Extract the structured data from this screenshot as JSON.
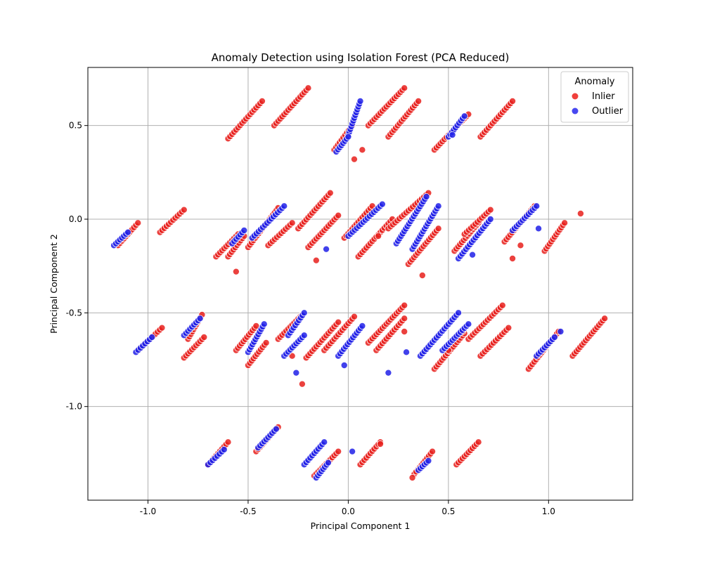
{
  "chart_data": {
    "type": "scatter",
    "title": "Anomaly Detection using Isolation Forest (PCA Reduced)",
    "xlabel": "Principal Component 1",
    "ylabel": "Principal Component 2",
    "xlim": [
      -1.3,
      1.42
    ],
    "ylim": [
      -1.5,
      0.81
    ],
    "xticks": [
      -1.0,
      -0.5,
      0.0,
      0.5,
      1.0
    ],
    "xtick_labels": [
      "-1.0",
      "-0.5",
      "0.0",
      "0.5",
      "1.0"
    ],
    "yticks": [
      0.5,
      0.0,
      -0.5,
      -1.0
    ],
    "ytick_labels": [
      "0.5",
      "0.0",
      "-0.5",
      "-1.0"
    ],
    "grid": true,
    "legend": {
      "title": "Anomaly",
      "position": "top-right",
      "entries": [
        {
          "label": "Inlier",
          "color": "#f0403c"
        },
        {
          "label": "Outlier",
          "color": "#4848f0"
        }
      ]
    },
    "series": [
      {
        "name": "Inlier",
        "color": "#e8201c",
        "segments": [
          {
            "x0": -1.15,
            "y0": -0.14,
            "x1": -1.05,
            "y1": -0.02
          },
          {
            "x0": -0.94,
            "y0": -0.07,
            "x1": -0.82,
            "y1": 0.05
          },
          {
            "x0": -0.6,
            "y0": 0.43,
            "x1": -0.43,
            "y1": 0.63
          },
          {
            "x0": -0.37,
            "y0": 0.5,
            "x1": -0.2,
            "y1": 0.7
          },
          {
            "x0": -0.07,
            "y0": 0.37,
            "x1": 0.02,
            "y1": 0.5
          },
          {
            "x0": 0.1,
            "y0": 0.5,
            "x1": 0.28,
            "y1": 0.7
          },
          {
            "x0": 0.2,
            "y0": 0.44,
            "x1": 0.35,
            "y1": 0.63
          },
          {
            "x0": 0.43,
            "y0": 0.37,
            "x1": 0.6,
            "y1": 0.56
          },
          {
            "x0": 0.66,
            "y0": 0.44,
            "x1": 0.82,
            "y1": 0.63
          },
          {
            "x0": -0.66,
            "y0": -0.2,
            "x1": -0.55,
            "y1": -0.08
          },
          {
            "x0": -0.6,
            "y0": -0.2,
            "x1": -0.52,
            "y1": -0.09
          },
          {
            "x0": -0.5,
            "y0": -0.15,
            "x1": -0.35,
            "y1": 0.06
          },
          {
            "x0": -0.4,
            "y0": -0.14,
            "x1": -0.28,
            "y1": -0.02
          },
          {
            "x0": -0.25,
            "y0": -0.05,
            "x1": -0.09,
            "y1": 0.14
          },
          {
            "x0": -0.2,
            "y0": -0.15,
            "x1": -0.05,
            "y1": 0.02
          },
          {
            "x0": -0.02,
            "y0": -0.1,
            "x1": 0.12,
            "y1": 0.07
          },
          {
            "x0": 0.05,
            "y0": -0.2,
            "x1": 0.22,
            "y1": 0.0
          },
          {
            "x0": 0.2,
            "y0": -0.05,
            "x1": 0.4,
            "y1": 0.14
          },
          {
            "x0": 0.3,
            "y0": -0.24,
            "x1": 0.45,
            "y1": -0.05
          },
          {
            "x0": 0.53,
            "y0": -0.17,
            "x1": 0.65,
            "y1": -0.02
          },
          {
            "x0": 0.58,
            "y0": -0.08,
            "x1": 0.71,
            "y1": 0.05
          },
          {
            "x0": 0.78,
            "y0": -0.12,
            "x1": 0.93,
            "y1": 0.07
          },
          {
            "x0": 0.98,
            "y0": -0.17,
            "x1": 1.08,
            "y1": -0.02
          },
          {
            "x0": -1.05,
            "y0": -0.7,
            "x1": -0.93,
            "y1": -0.58
          },
          {
            "x0": -0.8,
            "y0": -0.64,
            "x1": -0.73,
            "y1": -0.51
          },
          {
            "x0": -0.82,
            "y0": -0.74,
            "x1": -0.72,
            "y1": -0.63
          },
          {
            "x0": -0.56,
            "y0": -0.7,
            "x1": -0.46,
            "y1": -0.57
          },
          {
            "x0": -0.5,
            "y0": -0.78,
            "x1": -0.41,
            "y1": -0.66
          },
          {
            "x0": -0.35,
            "y0": -0.64,
            "x1": -0.23,
            "y1": -0.51
          },
          {
            "x0": -0.21,
            "y0": -0.74,
            "x1": -0.05,
            "y1": -0.55
          },
          {
            "x0": -0.12,
            "y0": -0.7,
            "x1": 0.03,
            "y1": -0.52
          },
          {
            "x0": 0.1,
            "y0": -0.66,
            "x1": 0.28,
            "y1": -0.46
          },
          {
            "x0": 0.14,
            "y0": -0.7,
            "x1": 0.28,
            "y1": -0.53
          },
          {
            "x0": 0.43,
            "y0": -0.8,
            "x1": 0.58,
            "y1": -0.61
          },
          {
            "x0": 0.6,
            "y0": -0.64,
            "x1": 0.77,
            "y1": -0.46
          },
          {
            "x0": 0.66,
            "y0": -0.73,
            "x1": 0.8,
            "y1": -0.58
          },
          {
            "x0": 1.12,
            "y0": -0.73,
            "x1": 1.28,
            "y1": -0.53
          },
          {
            "x0": 0.9,
            "y0": -0.8,
            "x1": 1.05,
            "y1": -0.6
          },
          {
            "x0": -0.7,
            "y0": -1.31,
            "x1": -0.6,
            "y1": -1.19
          },
          {
            "x0": -0.46,
            "y0": -1.24,
            "x1": -0.35,
            "y1": -1.11
          },
          {
            "x0": -0.17,
            "y0": -1.37,
            "x1": -0.05,
            "y1": -1.24
          },
          {
            "x0": 0.06,
            "y0": -1.31,
            "x1": 0.16,
            "y1": -1.19
          },
          {
            "x0": 0.54,
            "y0": -1.31,
            "x1": 0.65,
            "y1": -1.19
          },
          {
            "x0": 0.33,
            "y0": -1.36,
            "x1": 0.42,
            "y1": -1.24
          }
        ],
        "points": [
          {
            "x": 0.03,
            "y": 0.32
          },
          {
            "x": 0.07,
            "y": 0.37
          },
          {
            "x": -0.56,
            "y": -0.28
          },
          {
            "x": 0.37,
            "y": -0.3
          },
          {
            "x": -0.23,
            "y": -0.88
          },
          {
            "x": 0.28,
            "y": -0.6
          },
          {
            "x": 1.16,
            "y": 0.03
          },
          {
            "x": 0.82,
            "y": -0.21
          },
          {
            "x": 0.86,
            "y": -0.14
          },
          {
            "x": -0.28,
            "y": -0.73
          },
          {
            "x": 0.57,
            "y": -0.6
          },
          {
            "x": 0.32,
            "y": -1.38
          },
          {
            "x": 0.16,
            "y": -1.2
          },
          {
            "x": -0.16,
            "y": -0.22
          },
          {
            "x": 0.15,
            "y": -0.09
          },
          {
            "x": 0.5,
            "y": -0.7
          }
        ]
      },
      {
        "name": "Outlier",
        "color": "#2020e8",
        "segments": [
          {
            "x0": -1.17,
            "y0": -0.14,
            "x1": -1.1,
            "y1": -0.07
          },
          {
            "x0": -1.06,
            "y0": -0.71,
            "x1": -0.98,
            "y1": -0.63
          },
          {
            "x0": -0.82,
            "y0": -0.62,
            "x1": -0.74,
            "y1": -0.53
          },
          {
            "x0": -0.7,
            "y0": -1.31,
            "x1": -0.62,
            "y1": -1.23
          },
          {
            "x0": -0.45,
            "y0": -1.22,
            "x1": -0.36,
            "y1": -1.12
          },
          {
            "x0": -0.22,
            "y0": -1.31,
            "x1": -0.12,
            "y1": -1.19
          },
          {
            "x0": -0.58,
            "y0": -0.13,
            "x1": -0.52,
            "y1": -0.06
          },
          {
            "x0": -0.48,
            "y0": -0.1,
            "x1": -0.32,
            "y1": 0.07
          },
          {
            "x0": 0.0,
            "y0": 0.45,
            "x1": 0.06,
            "y1": 0.63
          },
          {
            "x0": -0.06,
            "y0": 0.36,
            "x1": 0.0,
            "y1": 0.44
          },
          {
            "x0": 0.5,
            "y0": 0.44,
            "x1": 0.58,
            "y1": 0.55
          },
          {
            "x0": 0.0,
            "y0": -0.09,
            "x1": 0.17,
            "y1": 0.08
          },
          {
            "x0": 0.24,
            "y0": -0.13,
            "x1": 0.39,
            "y1": 0.12
          },
          {
            "x0": 0.32,
            "y0": -0.16,
            "x1": 0.45,
            "y1": 0.07
          },
          {
            "x0": 0.55,
            "y0": -0.21,
            "x1": 0.71,
            "y1": 0.0
          },
          {
            "x0": 0.82,
            "y0": -0.06,
            "x1": 0.94,
            "y1": 0.07
          },
          {
            "x0": -0.5,
            "y0": -0.71,
            "x1": -0.42,
            "y1": -0.56
          },
          {
            "x0": -0.32,
            "y0": -0.73,
            "x1": -0.22,
            "y1": -0.62
          },
          {
            "x0": -0.3,
            "y0": -0.62,
            "x1": -0.22,
            "y1": -0.5
          },
          {
            "x0": -0.05,
            "y0": -0.73,
            "x1": 0.07,
            "y1": -0.57
          },
          {
            "x0": 0.36,
            "y0": -0.73,
            "x1": 0.55,
            "y1": -0.5
          },
          {
            "x0": 0.47,
            "y0": -0.7,
            "x1": 0.6,
            "y1": -0.56
          },
          {
            "x0": 0.94,
            "y0": -0.73,
            "x1": 1.03,
            "y1": -0.63
          },
          {
            "x0": -0.16,
            "y0": -1.38,
            "x1": -0.1,
            "y1": -1.3
          },
          {
            "x0": 0.35,
            "y0": -1.34,
            "x1": 0.4,
            "y1": -1.29
          }
        ],
        "points": [
          {
            "x": 0.95,
            "y": -0.05
          },
          {
            "x": 0.2,
            "y": -0.82
          },
          {
            "x": 0.29,
            "y": -0.71
          },
          {
            "x": 1.06,
            "y": -0.6
          },
          {
            "x": -0.11,
            "y": -0.16
          },
          {
            "x": -0.02,
            "y": -0.78
          },
          {
            "x": 0.02,
            "y": -1.24
          },
          {
            "x": 0.52,
            "y": 0.45
          },
          {
            "x": -0.26,
            "y": -0.82
          },
          {
            "x": 0.62,
            "y": -0.19
          }
        ]
      }
    ]
  }
}
